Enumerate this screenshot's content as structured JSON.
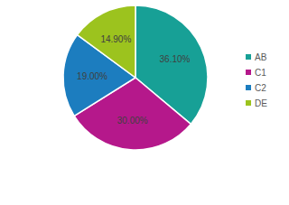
{
  "chart_data": {
    "type": "pie",
    "categories": [
      "AB",
      "C1",
      "C2",
      "DE"
    ],
    "values": [
      36.1,
      30.0,
      19.0,
      14.9
    ],
    "value_labels": [
      "36.10%",
      "30.00%",
      "19.00%",
      "14.90%"
    ],
    "colors": [
      "#17a096",
      "#b5188b",
      "#1c7dbf",
      "#9cc31e"
    ],
    "data_labels": true,
    "legend": "right"
  }
}
